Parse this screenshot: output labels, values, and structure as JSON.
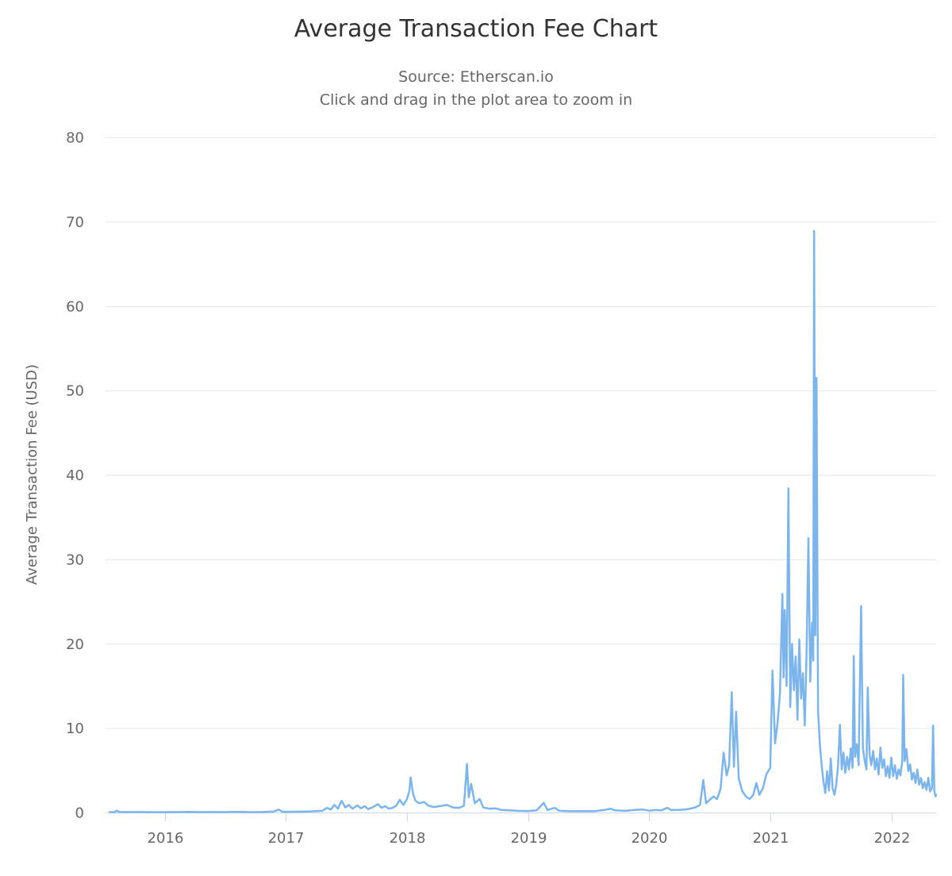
{
  "title": "Average Transaction Fee Chart",
  "subtitle_line1": "Source: Etherscan.io",
  "subtitle_line2": "Click and drag in the plot area to zoom in",
  "colors": {
    "line": "#7cb5ec",
    "grid": "#e6e6e6",
    "axis_line": "#ccd6eb",
    "title_text": "#333333",
    "label_text": "#666666",
    "background": "#ffffff"
  },
  "chart_data": {
    "type": "line",
    "title": "Average Transaction Fee Chart",
    "subtitle": "Source: Etherscan.io — Click and drag in the plot area to zoom in",
    "xlabel": "",
    "ylabel": "Average Transaction Fee (USD)",
    "ylim": [
      0,
      80
    ],
    "yticks": [
      0,
      10,
      20,
      30,
      40,
      50,
      60,
      70,
      80
    ],
    "xticks": [
      2016,
      2017,
      2018,
      2019,
      2020,
      2021,
      2022
    ],
    "xlim": [
      2015.51,
      2022.37
    ],
    "grid": "horizontal-only",
    "legend": "none",
    "series": [
      {
        "name": "Average Transaction Fee (USD)",
        "points": [
          [
            2015.545,
            0.06
          ],
          [
            2015.585,
            0.04
          ],
          [
            2015.6,
            0.22
          ],
          [
            2015.625,
            0.07
          ],
          [
            2015.7,
            0.05
          ],
          [
            2015.8,
            0.06
          ],
          [
            2015.9,
            0.04
          ],
          [
            2016.0,
            0.05
          ],
          [
            2016.1,
            0.05
          ],
          [
            2016.2,
            0.07
          ],
          [
            2016.3,
            0.05
          ],
          [
            2016.4,
            0.06
          ],
          [
            2016.5,
            0.05
          ],
          [
            2016.6,
            0.08
          ],
          [
            2016.7,
            0.05
          ],
          [
            2016.8,
            0.06
          ],
          [
            2016.9,
            0.12
          ],
          [
            2016.94,
            0.35
          ],
          [
            2016.97,
            0.1
          ],
          [
            2017.0,
            0.08
          ],
          [
            2017.1,
            0.1
          ],
          [
            2017.2,
            0.13
          ],
          [
            2017.3,
            0.2
          ],
          [
            2017.34,
            0.55
          ],
          [
            2017.37,
            0.35
          ],
          [
            2017.4,
            0.9
          ],
          [
            2017.43,
            0.45
          ],
          [
            2017.46,
            1.4
          ],
          [
            2017.49,
            0.6
          ],
          [
            2017.52,
            0.9
          ],
          [
            2017.55,
            0.45
          ],
          [
            2017.59,
            0.85
          ],
          [
            2017.62,
            0.5
          ],
          [
            2017.65,
            0.75
          ],
          [
            2017.68,
            0.4
          ],
          [
            2017.72,
            0.65
          ],
          [
            2017.76,
            1.0
          ],
          [
            2017.79,
            0.55
          ],
          [
            2017.82,
            0.75
          ],
          [
            2017.85,
            0.45
          ],
          [
            2017.88,
            0.55
          ],
          [
            2017.91,
            0.8
          ],
          [
            2017.94,
            1.5
          ],
          [
            2017.97,
            0.9
          ],
          [
            2018.0,
            1.6
          ],
          [
            2018.02,
            2.6
          ],
          [
            2018.03,
            4.15
          ],
          [
            2018.05,
            2.2
          ],
          [
            2018.07,
            1.4
          ],
          [
            2018.1,
            1.1
          ],
          [
            2018.14,
            1.25
          ],
          [
            2018.18,
            0.8
          ],
          [
            2018.22,
            0.65
          ],
          [
            2018.27,
            0.75
          ],
          [
            2018.33,
            0.9
          ],
          [
            2018.38,
            0.6
          ],
          [
            2018.43,
            0.55
          ],
          [
            2018.47,
            0.8
          ],
          [
            2018.495,
            5.75
          ],
          [
            2018.51,
            1.8
          ],
          [
            2018.53,
            3.4
          ],
          [
            2018.56,
            1.1
          ],
          [
            2018.6,
            1.6
          ],
          [
            2018.63,
            0.6
          ],
          [
            2018.68,
            0.45
          ],
          [
            2018.73,
            0.5
          ],
          [
            2018.78,
            0.3
          ],
          [
            2018.85,
            0.25
          ],
          [
            2018.92,
            0.2
          ],
          [
            2019.0,
            0.18
          ],
          [
            2019.07,
            0.25
          ],
          [
            2019.13,
            1.15
          ],
          [
            2019.16,
            0.3
          ],
          [
            2019.22,
            0.55
          ],
          [
            2019.26,
            0.2
          ],
          [
            2019.35,
            0.15
          ],
          [
            2019.45,
            0.17
          ],
          [
            2019.55,
            0.15
          ],
          [
            2019.63,
            0.3
          ],
          [
            2019.68,
            0.45
          ],
          [
            2019.72,
            0.25
          ],
          [
            2019.8,
            0.2
          ],
          [
            2019.88,
            0.3
          ],
          [
            2019.95,
            0.35
          ],
          [
            2020.0,
            0.22
          ],
          [
            2020.05,
            0.3
          ],
          [
            2020.1,
            0.25
          ],
          [
            2020.15,
            0.55
          ],
          [
            2020.18,
            0.3
          ],
          [
            2020.25,
            0.3
          ],
          [
            2020.32,
            0.4
          ],
          [
            2020.38,
            0.6
          ],
          [
            2020.42,
            0.9
          ],
          [
            2020.447,
            3.85
          ],
          [
            2020.47,
            1.1
          ],
          [
            2020.5,
            1.5
          ],
          [
            2020.53,
            1.9
          ],
          [
            2020.56,
            1.6
          ],
          [
            2020.59,
            2.8
          ],
          [
            2020.615,
            7.1
          ],
          [
            2020.64,
            4.4
          ],
          [
            2020.66,
            5.6
          ],
          [
            2020.682,
            14.25
          ],
          [
            2020.7,
            5.4
          ],
          [
            2020.718,
            11.95
          ],
          [
            2020.74,
            4.0
          ],
          [
            2020.77,
            2.5
          ],
          [
            2020.8,
            1.9
          ],
          [
            2020.83,
            1.6
          ],
          [
            2020.86,
            2.1
          ],
          [
            2020.885,
            3.5
          ],
          [
            2020.91,
            2.1
          ],
          [
            2020.94,
            2.9
          ],
          [
            2020.97,
            4.6
          ],
          [
            2021.0,
            5.3
          ],
          [
            2021.018,
            16.8
          ],
          [
            2021.04,
            8.2
          ],
          [
            2021.06,
            10.6
          ],
          [
            2021.08,
            14.0
          ],
          [
            2021.1,
            25.9
          ],
          [
            2021.11,
            16.0
          ],
          [
            2021.12,
            24.0
          ],
          [
            2021.135,
            15.0
          ],
          [
            2021.15,
            38.4
          ],
          [
            2021.165,
            12.5
          ],
          [
            2021.18,
            20.0
          ],
          [
            2021.195,
            14.5
          ],
          [
            2021.21,
            18.5
          ],
          [
            2021.225,
            11.0
          ],
          [
            2021.24,
            20.5
          ],
          [
            2021.255,
            13.5
          ],
          [
            2021.27,
            16.5
          ],
          [
            2021.285,
            10.3
          ],
          [
            2021.3,
            19.0
          ],
          [
            2021.315,
            32.5
          ],
          [
            2021.33,
            15.5
          ],
          [
            2021.345,
            22.5
          ],
          [
            2021.355,
            18.0
          ],
          [
            2021.362,
            68.9
          ],
          [
            2021.372,
            21.0
          ],
          [
            2021.382,
            51.5
          ],
          [
            2021.395,
            12.0
          ],
          [
            2021.41,
            8.0
          ],
          [
            2021.425,
            5.5
          ],
          [
            2021.44,
            3.6
          ],
          [
            2021.455,
            2.3
          ],
          [
            2021.47,
            4.9
          ],
          [
            2021.485,
            2.6
          ],
          [
            2021.5,
            6.4
          ],
          [
            2021.515,
            2.9
          ],
          [
            2021.53,
            2.1
          ],
          [
            2021.545,
            3.3
          ],
          [
            2021.56,
            5.6
          ],
          [
            2021.575,
            10.4
          ],
          [
            2021.59,
            5.1
          ],
          [
            2021.605,
            7.1
          ],
          [
            2021.62,
            4.7
          ],
          [
            2021.635,
            6.6
          ],
          [
            2021.65,
            5.1
          ],
          [
            2021.665,
            7.6
          ],
          [
            2021.68,
            5.3
          ],
          [
            2021.69,
            18.55
          ],
          [
            2021.7,
            6.6
          ],
          [
            2021.715,
            8.1
          ],
          [
            2021.73,
            5.6
          ],
          [
            2021.75,
            24.45
          ],
          [
            2021.765,
            7.6
          ],
          [
            2021.78,
            6.1
          ],
          [
            2021.795,
            5.1
          ],
          [
            2021.805,
            14.8
          ],
          [
            2021.82,
            6.9
          ],
          [
            2021.835,
            5.6
          ],
          [
            2021.85,
            7.3
          ],
          [
            2021.865,
            5.1
          ],
          [
            2021.88,
            6.4
          ],
          [
            2021.895,
            4.5
          ],
          [
            2021.91,
            7.7
          ],
          [
            2021.925,
            5.3
          ],
          [
            2021.94,
            6.3
          ],
          [
            2021.955,
            4.3
          ],
          [
            2021.97,
            5.5
          ],
          [
            2021.985,
            4.1
          ],
          [
            2022.0,
            6.5
          ],
          [
            2022.015,
            4.3
          ],
          [
            2022.03,
            5.6
          ],
          [
            2022.045,
            4.0
          ],
          [
            2022.06,
            5.1
          ],
          [
            2022.075,
            4.4
          ],
          [
            2022.09,
            6.1
          ],
          [
            2022.098,
            16.3
          ],
          [
            2022.11,
            6.1
          ],
          [
            2022.125,
            7.5
          ],
          [
            2022.14,
            4.9
          ],
          [
            2022.155,
            5.7
          ],
          [
            2022.17,
            3.9
          ],
          [
            2022.185,
            4.7
          ],
          [
            2022.2,
            3.5
          ],
          [
            2022.215,
            5.1
          ],
          [
            2022.23,
            3.3
          ],
          [
            2022.245,
            4.1
          ],
          [
            2022.26,
            2.9
          ],
          [
            2022.275,
            3.6
          ],
          [
            2022.29,
            2.7
          ],
          [
            2022.305,
            4.1
          ],
          [
            2022.32,
            2.5
          ],
          [
            2022.335,
            2.9
          ],
          [
            2022.345,
            10.3
          ],
          [
            2022.355,
            2.6
          ],
          [
            2022.365,
            1.9
          ],
          [
            2022.37,
            2.1
          ]
        ]
      }
    ]
  }
}
